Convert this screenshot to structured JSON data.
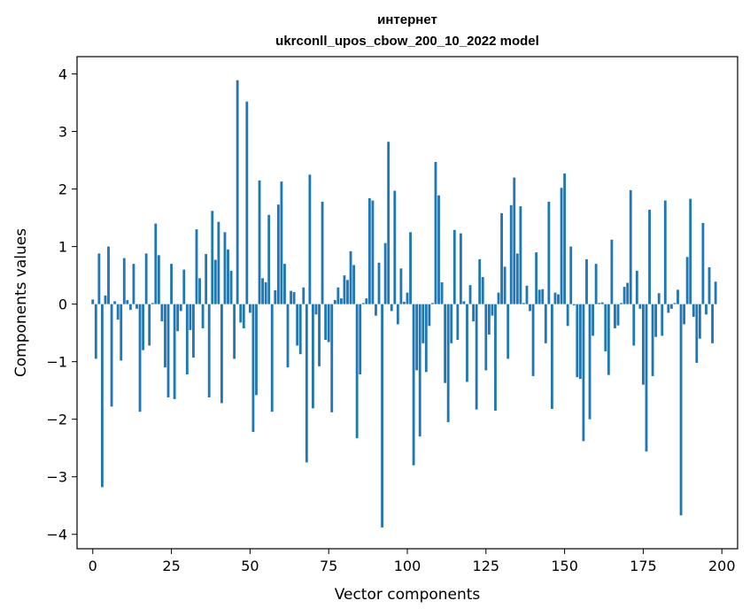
{
  "chart_data": {
    "type": "bar",
    "title": "интернет",
    "subtitle": "ukrconll_upos_cbow_200_10_2022 model",
    "xlabel": "Vector components",
    "ylabel": "Components values",
    "xlim": [
      -5,
      205
    ],
    "ylim": [
      -4.25,
      4.3
    ],
    "xticks": [
      0,
      25,
      50,
      75,
      100,
      125,
      150,
      175,
      200
    ],
    "xtick_labels": [
      "0",
      "25",
      "50",
      "75",
      "100",
      "125",
      "150",
      "175",
      "200"
    ],
    "yticks": [
      -4,
      -3,
      -2,
      -1,
      0,
      1,
      2,
      3,
      4
    ],
    "ytick_labels": [
      "−4",
      "−3",
      "−2",
      "−1",
      "0",
      "1",
      "2",
      "3",
      "4"
    ],
    "grid": false,
    "bar_color": "#1f77b4",
    "series": [
      {
        "x_start": 0,
        "values": [
          0.08,
          -0.95,
          0.88,
          -3.18,
          0.15,
          1.0,
          -1.78,
          0.05,
          -0.27,
          -0.98,
          0.8,
          0.07,
          -0.1,
          0.7,
          -0.08,
          -1.87,
          -0.8,
          0.88,
          -0.72,
          0.02,
          1.4,
          0.85,
          -0.3,
          -1.1,
          -1.62,
          0.7,
          -1.65,
          -0.47,
          -0.12,
          0.6,
          -1.22,
          -0.45,
          -0.93,
          1.3,
          0.45,
          -0.42,
          0.87,
          -1.62,
          1.62,
          0.77,
          1.43,
          -1.72,
          1.25,
          0.95,
          0.58,
          -0.95,
          3.89,
          -0.32,
          -0.42,
          3.52,
          -0.15,
          -2.22,
          -1.58,
          2.15,
          0.45,
          0.38,
          1.55,
          -1.87,
          0.24,
          1.73,
          2.13,
          0.7,
          -1.1,
          0.23,
          0.21,
          -0.72,
          -0.87,
          0.29,
          -2.75,
          2.25,
          -1.81,
          -0.18,
          -1.08,
          1.78,
          -0.62,
          -0.66,
          -1.88,
          0.07,
          0.29,
          0.1,
          0.5,
          0.42,
          0.92,
          0.68,
          -2.33,
          -1.22,
          0.02,
          0.1,
          1.84,
          1.8,
          -0.2,
          0.72,
          -3.88,
          1.06,
          2.82,
          -0.12,
          1.97,
          -0.35,
          0.62,
          0.04,
          0.2,
          1.25,
          -2.8,
          -1.15,
          -2.3,
          -0.68,
          -1.18,
          -0.38,
          0.02,
          2.47,
          1.89,
          0.38,
          -1.37,
          -2.05,
          -0.68,
          1.29,
          -0.62,
          1.23,
          0.05,
          -1.35,
          0.33,
          -0.3,
          -1.83,
          0.78,
          0.47,
          -1.15,
          -0.53,
          -0.2,
          -1.85,
          0.2,
          1.58,
          0.65,
          -0.95,
          1.72,
          2.2,
          0.88,
          1.7,
          0.02,
          0.32,
          -0.12,
          -1.25,
          0.9,
          0.25,
          0.26,
          -0.68,
          1.78,
          -1.82,
          0.2,
          0.17,
          2.02,
          2.27,
          -0.38,
          1.0,
          -0.02,
          -1.27,
          -1.3,
          -2.38,
          0.78,
          -2.0,
          -0.55,
          0.7,
          0.02,
          0.03,
          -0.82,
          -1.23,
          1.12,
          -0.42,
          -0.37,
          0.02,
          0.3,
          0.37,
          1.98,
          -0.72,
          0.58,
          -0.08,
          -1.4,
          -2.56,
          1.64,
          -1.25,
          -0.57,
          0.19,
          -0.55,
          1.8,
          -0.15,
          -0.08,
          0.02,
          0.25,
          -3.67,
          -0.35,
          0.82,
          1.83,
          -0.22,
          -1.02,
          -0.6,
          1.41,
          -0.18,
          0.64,
          -0.68,
          0.39
        ]
      }
    ]
  }
}
